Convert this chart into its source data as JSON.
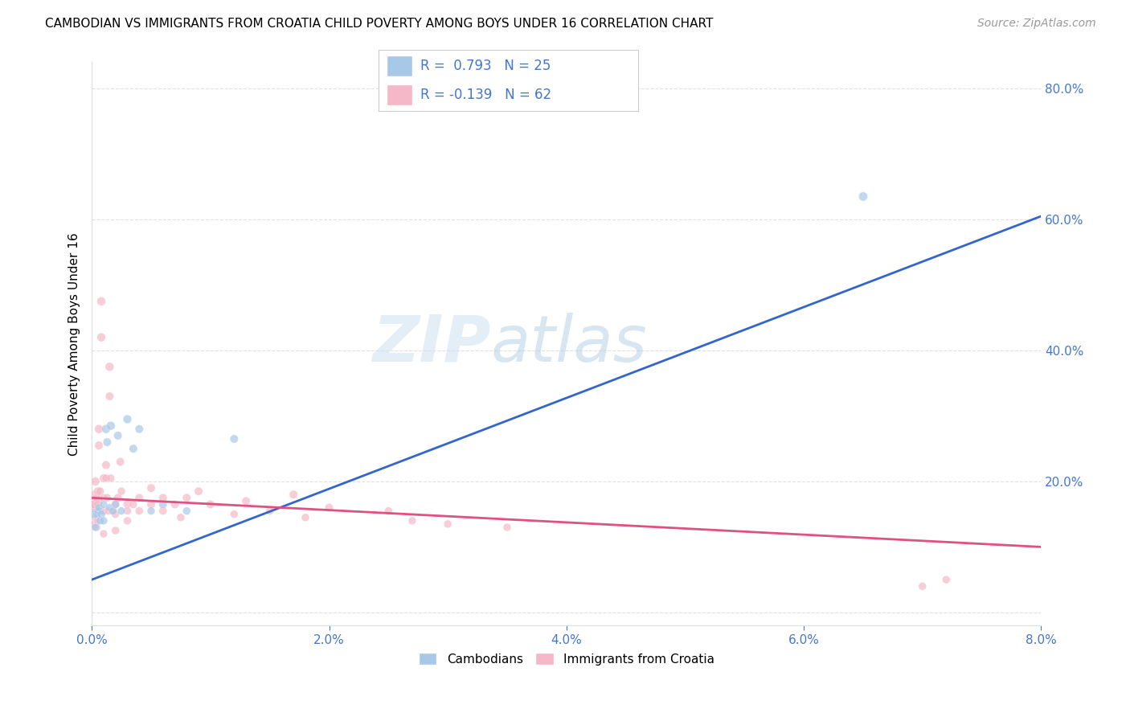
{
  "title": "CAMBODIAN VS IMMIGRANTS FROM CROATIA CHILD POVERTY AMONG BOYS UNDER 16 CORRELATION CHART",
  "source": "Source: ZipAtlas.com",
  "ylabel": "Child Poverty Among Boys Under 16",
  "xlim": [
    0.0,
    0.08
  ],
  "ylim": [
    -0.02,
    0.84
  ],
  "xticks": [
    0.0,
    0.02,
    0.04,
    0.06,
    0.08
  ],
  "xticklabels": [
    "0.0%",
    "2.0%",
    "4.0%",
    "6.0%",
    "8.0%"
  ],
  "yticks": [
    0.0,
    0.2,
    0.4,
    0.6,
    0.8
  ],
  "yticklabels": [
    "",
    "20.0%",
    "40.0%",
    "60.0%",
    "80.0%"
  ],
  "legend_text1": "R =  0.793   N = 25",
  "legend_text2": "R = -0.139   N = 62",
  "blue_fill": "#a8c8e8",
  "pink_fill": "#f4b8c8",
  "blue_line_color": "#3366cc",
  "pink_line_color": "#e05080",
  "watermark_zip": "ZIP",
  "watermark_atlas": "atlas",
  "legend_label1": "Cambodians",
  "legend_label2": "Immigrants from Croatia",
  "cambodians_x": [
    0.0002,
    0.0003,
    0.0004,
    0.0005,
    0.0006,
    0.0007,
    0.0008,
    0.001,
    0.001,
    0.0012,
    0.0013,
    0.0015,
    0.0016,
    0.0018,
    0.002,
    0.0022,
    0.0025,
    0.003,
    0.0035,
    0.004,
    0.005,
    0.006,
    0.008,
    0.012,
    0.065
  ],
  "cambodians_y": [
    0.15,
    0.13,
    0.15,
    0.155,
    0.16,
    0.14,
    0.15,
    0.165,
    0.14,
    0.28,
    0.26,
    0.16,
    0.285,
    0.155,
    0.165,
    0.27,
    0.155,
    0.295,
    0.25,
    0.28,
    0.155,
    0.165,
    0.155,
    0.265,
    0.635
  ],
  "cambodians_size": [
    60,
    50,
    50,
    45,
    50,
    50,
    55,
    50,
    50,
    60,
    55,
    50,
    60,
    50,
    50,
    55,
    50,
    60,
    55,
    55,
    50,
    55,
    50,
    55,
    65
  ],
  "croatia_x": [
    5e-05,
    0.0001,
    0.0002,
    0.0002,
    0.0003,
    0.0003,
    0.0004,
    0.0004,
    0.0005,
    0.0005,
    0.0005,
    0.0006,
    0.0006,
    0.0007,
    0.0007,
    0.0008,
    0.0008,
    0.001,
    0.001,
    0.001,
    0.001,
    0.0012,
    0.0012,
    0.0013,
    0.0014,
    0.0015,
    0.0015,
    0.0016,
    0.0017,
    0.002,
    0.002,
    0.002,
    0.0022,
    0.0024,
    0.0025,
    0.003,
    0.003,
    0.003,
    0.0035,
    0.004,
    0.004,
    0.005,
    0.005,
    0.006,
    0.006,
    0.007,
    0.0075,
    0.008,
    0.009,
    0.01,
    0.012,
    0.013,
    0.015,
    0.017,
    0.018,
    0.02,
    0.025,
    0.027,
    0.03,
    0.035,
    0.07,
    0.072
  ],
  "croatia_y": [
    0.17,
    0.16,
    0.165,
    0.135,
    0.2,
    0.145,
    0.175,
    0.13,
    0.185,
    0.165,
    0.14,
    0.28,
    0.255,
    0.185,
    0.155,
    0.475,
    0.42,
    0.205,
    0.175,
    0.155,
    0.12,
    0.225,
    0.205,
    0.175,
    0.155,
    0.375,
    0.33,
    0.205,
    0.155,
    0.165,
    0.15,
    0.125,
    0.175,
    0.23,
    0.185,
    0.165,
    0.155,
    0.14,
    0.165,
    0.175,
    0.155,
    0.165,
    0.19,
    0.175,
    0.155,
    0.165,
    0.145,
    0.175,
    0.185,
    0.165,
    0.15,
    0.17,
    0.155,
    0.18,
    0.145,
    0.16,
    0.155,
    0.14,
    0.135,
    0.13,
    0.04,
    0.05
  ],
  "croatia_size": [
    350,
    80,
    60,
    55,
    60,
    55,
    55,
    50,
    55,
    50,
    50,
    60,
    55,
    55,
    50,
    60,
    60,
    55,
    50,
    50,
    50,
    55,
    50,
    50,
    50,
    60,
    55,
    50,
    50,
    55,
    50,
    50,
    55,
    55,
    50,
    55,
    50,
    50,
    50,
    55,
    50,
    55,
    55,
    55,
    50,
    55,
    50,
    55,
    55,
    55,
    50,
    55,
    50,
    55,
    50,
    55,
    50,
    50,
    50,
    50,
    50,
    50
  ],
  "blue_trendline_x": [
    0.0,
    0.08
  ],
  "blue_trendline_y": [
    0.05,
    0.605
  ],
  "pink_trendline_x": [
    0.0,
    0.08
  ],
  "pink_trendline_y": [
    0.175,
    0.1
  ],
  "title_fontsize": 11,
  "axis_label_color": "#4477cc",
  "grid_color": "#cccccc",
  "background_color": "#ffffff"
}
